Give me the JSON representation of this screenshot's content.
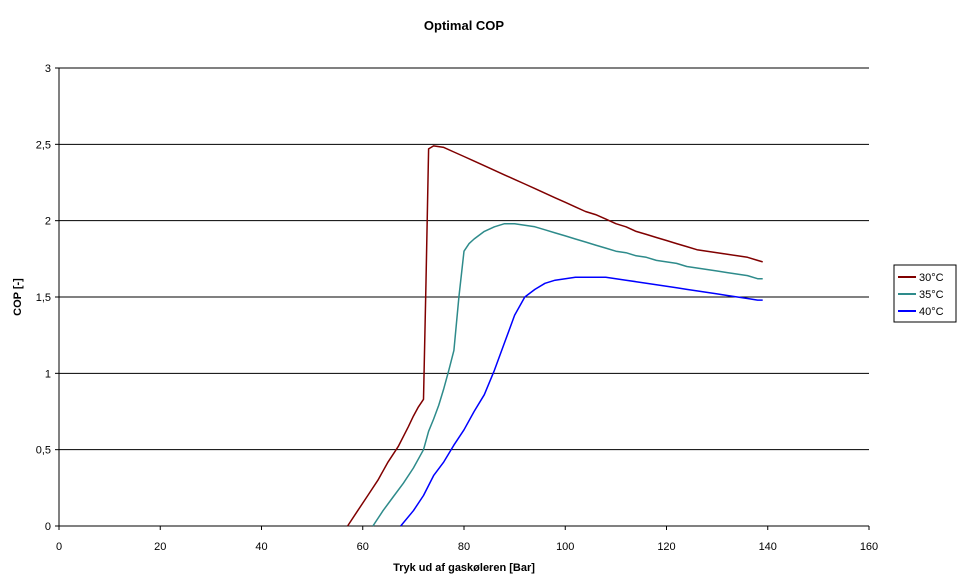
{
  "chart_data": {
    "type": "line",
    "title": "Optimal COP",
    "xlabel": "Tryk ud af gaskøleren [Bar]",
    "ylabel": "COP [-]",
    "xlim": [
      0,
      160
    ],
    "ylim": [
      0,
      3
    ],
    "x_ticks": [
      0,
      20,
      40,
      60,
      80,
      100,
      120,
      140,
      160
    ],
    "y_ticks": [
      {
        "value": 0,
        "label": "0"
      },
      {
        "value": 0.5,
        "label": "0,5"
      },
      {
        "value": 1,
        "label": "1"
      },
      {
        "value": 1.5,
        "label": "1,5"
      },
      {
        "value": 2,
        "label": "2"
      },
      {
        "value": 2.5,
        "label": "2,5"
      },
      {
        "value": 3,
        "label": "3"
      }
    ],
    "grid": "horizontal",
    "legend_position": "right",
    "series": [
      {
        "name": "30°C",
        "color": "#800000",
        "x": [
          57,
          59,
          61,
          63,
          65,
          67,
          69,
          70,
          71,
          72,
          72.5,
          73,
          74,
          76,
          78,
          80,
          82,
          84,
          86,
          88,
          90,
          92,
          94,
          96,
          98,
          100,
          102,
          104,
          106,
          108,
          110,
          112,
          114,
          116,
          118,
          120,
          122,
          124,
          126,
          128,
          130,
          132,
          134,
          136,
          138,
          139
        ],
        "y": [
          0,
          0.1,
          0.2,
          0.3,
          0.42,
          0.52,
          0.65,
          0.72,
          0.78,
          0.83,
          1.6,
          2.47,
          2.49,
          2.48,
          2.45,
          2.42,
          2.39,
          2.36,
          2.33,
          2.3,
          2.27,
          2.24,
          2.21,
          2.18,
          2.15,
          2.12,
          2.09,
          2.06,
          2.04,
          2.01,
          1.98,
          1.96,
          1.93,
          1.91,
          1.89,
          1.87,
          1.85,
          1.83,
          1.81,
          1.8,
          1.79,
          1.78,
          1.77,
          1.76,
          1.74,
          1.73
        ]
      },
      {
        "name": "35°C",
        "color": "#2e8b8b",
        "x": [
          62,
          64,
          66,
          68,
          70,
          72,
          73,
          74,
          75,
          76,
          77,
          78,
          79,
          80,
          81,
          82,
          84,
          86,
          88,
          90,
          92,
          94,
          96,
          98,
          100,
          102,
          104,
          106,
          108,
          110,
          112,
          114,
          116,
          118,
          120,
          122,
          124,
          126,
          128,
          130,
          132,
          134,
          136,
          138,
          139
        ],
        "y": [
          0,
          0.1,
          0.19,
          0.28,
          0.38,
          0.5,
          0.62,
          0.7,
          0.79,
          0.9,
          1.02,
          1.15,
          1.5,
          1.8,
          1.85,
          1.88,
          1.93,
          1.96,
          1.98,
          1.98,
          1.97,
          1.96,
          1.94,
          1.92,
          1.9,
          1.88,
          1.86,
          1.84,
          1.82,
          1.8,
          1.79,
          1.77,
          1.76,
          1.74,
          1.73,
          1.72,
          1.7,
          1.69,
          1.68,
          1.67,
          1.66,
          1.65,
          1.64,
          1.62,
          1.62
        ]
      },
      {
        "name": "40°C",
        "color": "#0000ff",
        "x": [
          67.5,
          70,
          72,
          74,
          76,
          78,
          80,
          82,
          84,
          86,
          88,
          90,
          92,
          94,
          96,
          98,
          100,
          102,
          104,
          106,
          108,
          110,
          112,
          114,
          116,
          118,
          120,
          122,
          124,
          126,
          128,
          130,
          132,
          134,
          136,
          138,
          139
        ],
        "y": [
          0,
          0.1,
          0.2,
          0.33,
          0.42,
          0.53,
          0.63,
          0.75,
          0.86,
          1.02,
          1.2,
          1.38,
          1.5,
          1.55,
          1.59,
          1.61,
          1.62,
          1.63,
          1.63,
          1.63,
          1.63,
          1.62,
          1.61,
          1.6,
          1.59,
          1.58,
          1.57,
          1.56,
          1.55,
          1.54,
          1.53,
          1.52,
          1.51,
          1.5,
          1.49,
          1.48,
          1.48
        ]
      }
    ]
  }
}
